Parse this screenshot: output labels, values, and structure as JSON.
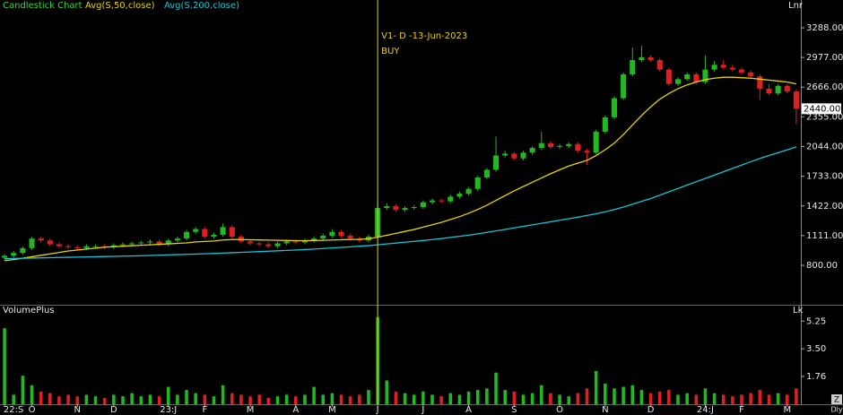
{
  "chart_data": [
    {
      "type": "candlestick",
      "name": "Candlestick Chart",
      "scale_label": "Lnr",
      "up_color": "#22b822",
      "down_color": "#e02020",
      "categories": [
        "22:S",
        null,
        null,
        "O",
        null,
        null,
        null,
        null,
        "N",
        null,
        null,
        null,
        "D",
        null,
        null,
        null,
        null,
        null,
        "23:J",
        null,
        null,
        null,
        "F",
        null,
        null,
        null,
        null,
        "M",
        null,
        null,
        null,
        null,
        "A",
        null,
        null,
        null,
        "M",
        null,
        null,
        null,
        null,
        "J",
        null,
        null,
        null,
        null,
        "J",
        null,
        null,
        null,
        null,
        "A",
        null,
        null,
        null,
        null,
        "S",
        null,
        null,
        null,
        null,
        "O",
        null,
        null,
        null,
        null,
        "N",
        null,
        null,
        null,
        null,
        "D",
        null,
        null,
        null,
        null,
        null,
        "24:J",
        null,
        null,
        null,
        "F",
        null,
        null,
        null,
        null,
        "M",
        null
      ],
      "open": [
        880,
        900,
        930,
        980,
        1080,
        1060,
        1020,
        1000,
        990,
        980,
        1000,
        1000,
        990,
        1010,
        1020,
        1030,
        1040,
        1050,
        1020,
        1060,
        1080,
        1150,
        1180,
        1100,
        1120,
        1200,
        1100,
        1050,
        1030,
        1020,
        1000,
        1030,
        1050,
        1040,
        1060,
        1080,
        1110,
        1150,
        1110,
        1080,
        1060,
        1100,
        1400,
        1420,
        1380,
        1400,
        1410,
        1460,
        1480,
        1470,
        1520,
        1550,
        1600,
        1720,
        1800,
        1950,
        1970,
        1920,
        1980,
        2030,
        2080,
        2040,
        2050,
        2070,
        2000,
        1980,
        2200,
        2350,
        2550,
        2800,
        2950,
        2980,
        2950,
        2850,
        2700,
        2750,
        2800,
        2720,
        2850,
        2900,
        2870,
        2850,
        2820,
        2780,
        2650,
        2600,
        2680,
        2620
      ],
      "high": [
        920,
        950,
        1000,
        1100,
        1100,
        1080,
        1040,
        1020,
        1010,
        1020,
        1020,
        1020,
        1030,
        1040,
        1050,
        1060,
        1070,
        1070,
        1080,
        1100,
        1170,
        1200,
        1200,
        1140,
        1240,
        1220,
        1120,
        1070,
        1050,
        1040,
        1050,
        1070,
        1070,
        1080,
        1100,
        1130,
        1180,
        1170,
        1130,
        1100,
        1120,
        1460,
        1450,
        1440,
        1420,
        1430,
        1480,
        1500,
        1500,
        1540,
        1570,
        1620,
        1740,
        1820,
        2150,
        2000,
        1990,
        2000,
        2050,
        2200,
        2100,
        2070,
        2090,
        2090,
        2020,
        2220,
        2370,
        2570,
        2820,
        3080,
        3100,
        3000,
        2970,
        2870,
        2770,
        2820,
        2820,
        3000,
        2940,
        2950,
        2900,
        2870,
        2840,
        2800,
        2700,
        2700,
        2700,
        2640
      ],
      "low": [
        860,
        880,
        910,
        960,
        1040,
        1000,
        980,
        970,
        960,
        960,
        980,
        970,
        970,
        990,
        1000,
        1010,
        1020,
        1000,
        1000,
        1040,
        1060,
        1130,
        1080,
        1080,
        1100,
        1080,
        1030,
        1010,
        1000,
        980,
        980,
        1010,
        1020,
        1020,
        1040,
        1060,
        1090,
        1090,
        1060,
        1040,
        1040,
        1080,
        1380,
        1360,
        1360,
        1380,
        1390,
        1440,
        1450,
        1450,
        1500,
        1530,
        1580,
        1700,
        1780,
        1930,
        1900,
        1900,
        1960,
        2010,
        2020,
        2020,
        2030,
        1980,
        1850,
        1960,
        2180,
        2330,
        2530,
        2780,
        2930,
        2930,
        2830,
        2680,
        2680,
        2730,
        2700,
        2700,
        2830,
        2850,
        2830,
        2800,
        2760,
        2530,
        2580,
        2580,
        2600,
        2280
      ],
      "close": [
        900,
        930,
        980,
        1080,
        1060,
        1020,
        1000,
        990,
        980,
        1000,
        1000,
        990,
        1010,
        1020,
        1030,
        1040,
        1050,
        1020,
        1060,
        1080,
        1150,
        1180,
        1100,
        1120,
        1200,
        1100,
        1050,
        1030,
        1020,
        1000,
        1030,
        1050,
        1040,
        1060,
        1080,
        1110,
        1150,
        1110,
        1080,
        1060,
        1100,
        1400,
        1420,
        1380,
        1400,
        1410,
        1460,
        1480,
        1470,
        1520,
        1550,
        1600,
        1720,
        1800,
        1950,
        1970,
        1920,
        1980,
        2030,
        2080,
        2040,
        2050,
        2070,
        2000,
        1980,
        2200,
        2350,
        2550,
        2800,
        2950,
        2980,
        2950,
        2850,
        2700,
        2750,
        2800,
        2720,
        2850,
        2900,
        2870,
        2850,
        2820,
        2780,
        2650,
        2600,
        2680,
        2620,
        2440
      ],
      "series": [
        {
          "name": "Avg(S,50,close)",
          "color": "#e8d400",
          "values": [
            850,
            860,
            875,
            890,
            905,
            920,
            935,
            950,
            960,
            970,
            980,
            990,
            995,
            1000,
            1005,
            1010,
            1015,
            1020,
            1025,
            1030,
            1035,
            1045,
            1050,
            1055,
            1065,
            1070,
            1070,
            1068,
            1066,
            1064,
            1062,
            1060,
            1058,
            1058,
            1060,
            1062,
            1065,
            1068,
            1070,
            1072,
            1078,
            1095,
            1115,
            1135,
            1155,
            1175,
            1200,
            1225,
            1250,
            1280,
            1310,
            1345,
            1385,
            1430,
            1480,
            1530,
            1580,
            1625,
            1670,
            1715,
            1760,
            1800,
            1840,
            1870,
            1900,
            1950,
            2010,
            2080,
            2170,
            2270,
            2370,
            2460,
            2540,
            2600,
            2650,
            2690,
            2720,
            2745,
            2760,
            2770,
            2770,
            2765,
            2760,
            2750,
            2740,
            2730,
            2720,
            2700
          ]
        },
        {
          "name": "Avg(S,200,close)",
          "color": "#18c4d4",
          "values": [
            870,
            872,
            874,
            876,
            878,
            880,
            882,
            884,
            886,
            888,
            890,
            892,
            894,
            896,
            898,
            900,
            903,
            906,
            909,
            912,
            915,
            918,
            921,
            924,
            928,
            932,
            936,
            940,
            944,
            948,
            952,
            956,
            960,
            965,
            970,
            976,
            982,
            988,
            994,
            1000,
            1006,
            1015,
            1024,
            1033,
            1042,
            1051,
            1060,
            1070,
            1080,
            1092,
            1104,
            1116,
            1130,
            1145,
            1160,
            1176,
            1192,
            1208,
            1224,
            1240,
            1256,
            1272,
            1288,
            1304,
            1322,
            1340,
            1360,
            1384,
            1410,
            1440,
            1470,
            1500,
            1535,
            1570,
            1605,
            1640,
            1675,
            1710,
            1745,
            1780,
            1815,
            1850,
            1885,
            1920,
            1950,
            1980,
            2010,
            2040
          ]
        }
      ],
      "ylim": [
        387,
        3579
      ],
      "yticks": [
        {
          "value": 800,
          "label": "800.00"
        },
        {
          "value": 1111,
          "label": "1111.00"
        },
        {
          "value": 1422,
          "label": "1422.00"
        },
        {
          "value": 1733,
          "label": "1733.00"
        },
        {
          "value": 2044,
          "label": "2044.00"
        },
        {
          "value": 2355,
          "label": "2355.00"
        },
        {
          "value": 2666,
          "label": "2666.00"
        },
        {
          "value": 2977,
          "label": "2977.00"
        },
        {
          "value": 3288,
          "label": "3288.00"
        }
      ],
      "price_marker": {
        "value": 2440,
        "label": "2440.00"
      },
      "annotation": {
        "category": 41,
        "text": "V1- D -13-Jun-2023",
        "signal": "BUY",
        "color": "#e8d400"
      }
    },
    {
      "type": "bar",
      "title": "VolumePlus",
      "unit": "Lk",
      "values": [
        4.8,
        0.6,
        1.8,
        1.2,
        0.8,
        0.7,
        0.5,
        0.6,
        0.5,
        0.6,
        0.5,
        0.4,
        0.6,
        0.5,
        0.7,
        0.5,
        0.6,
        0.5,
        1.1,
        0.6,
        0.9,
        0.7,
        0.6,
        0.5,
        1.2,
        0.7,
        0.6,
        0.5,
        0.6,
        0.4,
        0.5,
        0.6,
        0.5,
        0.6,
        1.1,
        0.6,
        0.7,
        0.6,
        0.5,
        0.6,
        0.9,
        5.5,
        1.5,
        0.8,
        0.7,
        0.6,
        0.8,
        0.6,
        0.5,
        0.7,
        0.6,
        0.8,
        0.9,
        1.0,
        2.0,
        0.9,
        0.8,
        0.6,
        0.7,
        1.2,
        0.7,
        0.6,
        0.5,
        0.7,
        1.0,
        2.1,
        1.3,
        1.0,
        1.1,
        1.2,
        0.9,
        0.7,
        0.8,
        0.9,
        0.6,
        0.7,
        0.6,
        1.0,
        0.7,
        0.6,
        0.5,
        0.6,
        0.7,
        0.9,
        0.6,
        0.7,
        0.6,
        1.0
      ],
      "ylim": [
        0,
        6.17
      ],
      "yticks": [
        1.76,
        {
          "value": 3.5,
          "label": "3.50"
        },
        5.25
      ]
    }
  ],
  "toolbar": {
    "zoom": "Z",
    "period": "Dly"
  }
}
